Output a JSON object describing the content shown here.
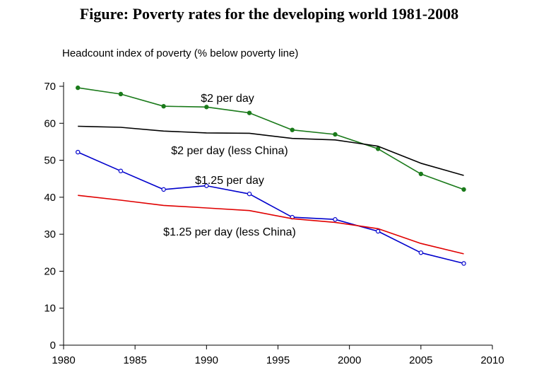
{
  "chart_data": {
    "type": "line",
    "title": "Figure: Poverty rates for the developing world 1981-2008",
    "xlabel": "",
    "ylabel": "Headcount index of poverty (% below poverty line)",
    "xlim": [
      1980,
      2010
    ],
    "ylim": [
      0,
      70
    ],
    "xticks": [
      1980,
      1985,
      1990,
      1995,
      2000,
      2005,
      2010
    ],
    "yticks": [
      0,
      10,
      20,
      30,
      40,
      50,
      60,
      70
    ],
    "legend": "inline labels",
    "grid": false,
    "series": [
      {
        "name": "$2 per day",
        "color": "#1a7a1a",
        "markers": true,
        "x": [
          1981,
          1984,
          1987,
          1990,
          1993,
          1996,
          1999,
          2002,
          2005,
          2008
        ],
        "values": [
          69.6,
          67.9,
          64.6,
          64.4,
          62.8,
          58.2,
          57.0,
          53.1,
          46.3,
          42.1
        ]
      },
      {
        "name": "$2 per day (less China)",
        "color": "#000000",
        "markers": false,
        "x": [
          1981,
          1984,
          1987,
          1990,
          1993,
          1996,
          1999,
          2002,
          2005,
          2008
        ],
        "values": [
          59.2,
          58.9,
          57.9,
          57.4,
          57.3,
          55.9,
          55.5,
          53.8,
          49.2,
          45.9
        ]
      },
      {
        "name": "$1.25 per day",
        "color": "#0000cc",
        "markers": true,
        "x": [
          1981,
          1984,
          1987,
          1990,
          1993,
          1996,
          1999,
          2002,
          2005,
          2008
        ],
        "values": [
          52.2,
          47.1,
          42.1,
          43.1,
          40.9,
          34.6,
          34.0,
          30.8,
          25.0,
          22.1
        ]
      },
      {
        "name": "$1.25 per day (less China)",
        "color": "#e00000",
        "markers": false,
        "x": [
          1981,
          1984,
          1987,
          1990,
          1993,
          1996,
          1999,
          2002,
          2005,
          2008
        ],
        "values": [
          40.5,
          39.2,
          37.8,
          37.1,
          36.4,
          34.2,
          33.2,
          31.5,
          27.5,
          24.7
        ]
      }
    ]
  }
}
